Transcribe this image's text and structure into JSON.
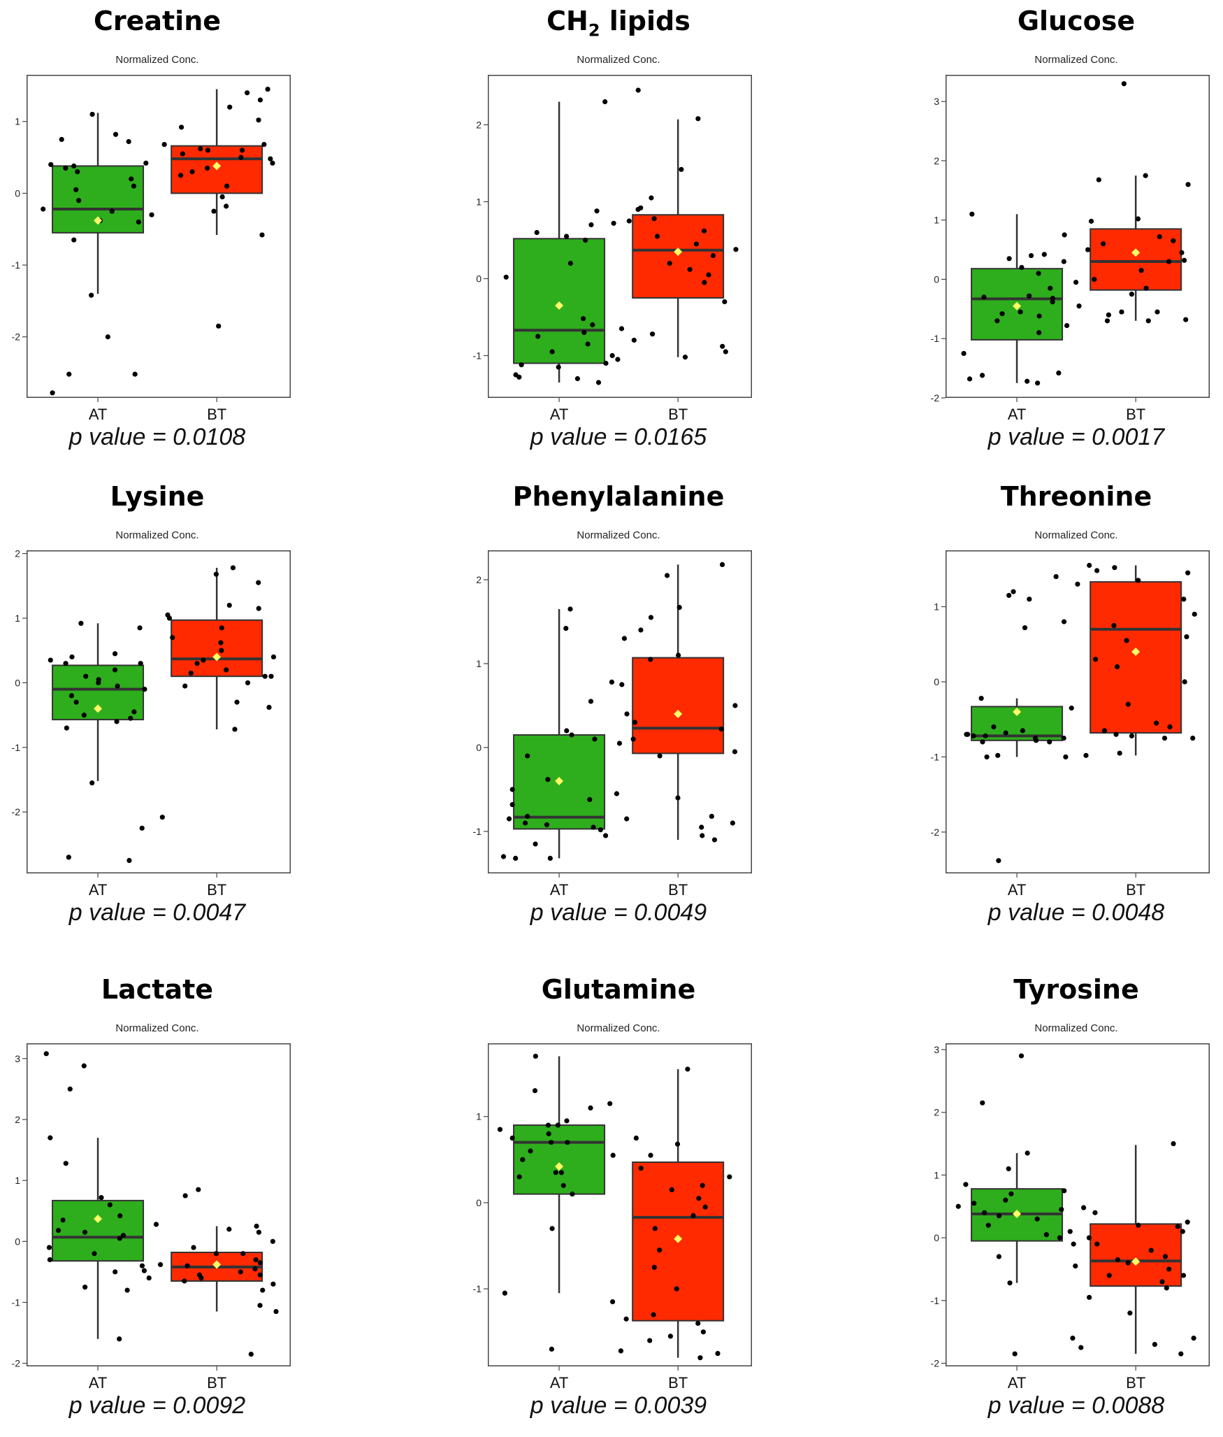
{
  "colors": {
    "AT": "#2eae1c",
    "BT": "#ff2a00",
    "mean_marker": "#ffff66",
    "points": "#000000"
  },
  "chart_data": [
    {
      "type": "box",
      "title": "Creatine",
      "ylabel": "Normalized Conc.",
      "categories": [
        "AT",
        "BT"
      ],
      "ylim": [
        -2.85,
        1.65
      ],
      "yticks": [
        1,
        0,
        -1,
        -2
      ],
      "boxes": [
        {
          "group": "AT",
          "min": -1.4,
          "q1": -0.55,
          "median": -0.22,
          "q3": 0.38,
          "max": 1.12,
          "mean": -0.38
        },
        {
          "group": "BT",
          "min": -0.58,
          "q1": 0.0,
          "median": 0.48,
          "q3": 0.66,
          "max": 1.45,
          "mean": 0.38
        }
      ],
      "points": {
        "AT": [
          0.82,
          0.42,
          0.38,
          0.4,
          0.35,
          0.72,
          0.75,
          0.3,
          0.1,
          -0.1,
          -0.25,
          -0.4,
          -0.3,
          -0.38,
          -0.65,
          1.1,
          -1.42,
          -2.0,
          -2.52,
          -2.52,
          -2.78,
          0.2,
          -0.22,
          0.05
        ],
        "BT": [
          1.45,
          1.4,
          1.3,
          1.2,
          1.02,
          0.92,
          0.68,
          0.62,
          0.6,
          0.55,
          0.5,
          0.48,
          0.42,
          0.3,
          0.25,
          0.1,
          -0.05,
          -0.18,
          -0.25,
          -0.58,
          -1.85,
          0.68,
          0.6,
          0.35
        ]
      },
      "p_value": "p value = 0.0108"
    },
    {
      "type": "box",
      "title": "CH2 lipids",
      "title_main": "CH",
      "title_sub": "2",
      "title_tail": " lipids",
      "ylabel": "Normalized Conc.",
      "categories": [
        "AT",
        "BT"
      ],
      "ylim": [
        -1.55,
        2.65
      ],
      "yticks": [
        2,
        1,
        0,
        -1
      ],
      "boxes": [
        {
          "group": "AT",
          "min": -1.35,
          "q1": -1.1,
          "median": -0.67,
          "q3": 0.52,
          "max": 2.3,
          "mean": -0.35
        },
        {
          "group": "BT",
          "min": -1.02,
          "q1": -0.25,
          "median": 0.37,
          "q3": 0.83,
          "max": 2.07,
          "mean": 0.35
        }
      ],
      "points": {
        "AT": [
          2.3,
          0.88,
          0.72,
          0.7,
          0.55,
          0.5,
          0.2,
          0.02,
          -0.52,
          -0.6,
          -0.7,
          -0.75,
          -0.85,
          -1.0,
          -1.05,
          -1.1,
          -1.12,
          -1.25,
          -1.3,
          -1.35,
          -1.28,
          -0.95,
          0.6,
          -1.15
        ],
        "BT": [
          2.45,
          2.08,
          1.42,
          1.05,
          0.92,
          0.9,
          0.78,
          0.75,
          0.55,
          0.45,
          0.3,
          0.2,
          0.05,
          -0.05,
          -0.3,
          -0.65,
          -0.72,
          -0.8,
          -0.88,
          -0.95,
          -1.02,
          0.62,
          0.38,
          0.12
        ]
      },
      "p_value": "p value = 0.0165"
    },
    {
      "type": "box",
      "title": "Glucose",
      "ylabel": "Normalized Conc.",
      "categories": [
        "AT",
        "BT"
      ],
      "ylim": [
        -2.0,
        3.45
      ],
      "yticks": [
        3,
        2,
        1,
        0,
        -1,
        -2
      ],
      "boxes": [
        {
          "group": "AT",
          "min": -1.75,
          "q1": -1.02,
          "median": -0.33,
          "q3": 0.18,
          "max": 1.1,
          "mean": -0.45
        },
        {
          "group": "BT",
          "min": -0.7,
          "q1": -0.18,
          "median": 0.3,
          "q3": 0.85,
          "max": 1.75,
          "mean": 0.45
        }
      ],
      "points": {
        "AT": [
          1.1,
          0.42,
          0.4,
          0.35,
          0.3,
          0.1,
          -0.05,
          -0.15,
          -0.28,
          -0.3,
          -0.32,
          -0.38,
          -0.55,
          -0.58,
          -0.62,
          -0.7,
          -0.78,
          -0.9,
          -1.25,
          -1.58,
          -1.62,
          -1.68,
          -1.72,
          -1.75,
          0.75,
          0.2
        ],
        "BT": [
          3.3,
          1.75,
          1.68,
          1.6,
          1.02,
          0.98,
          0.72,
          0.65,
          0.6,
          0.5,
          0.45,
          0.32,
          0.15,
          0.0,
          -0.15,
          -0.25,
          -0.45,
          -0.55,
          -0.6,
          -0.68,
          -0.7,
          -0.55,
          -0.7,
          0.3
        ]
      },
      "p_value": "p value = 0.0017"
    },
    {
      "type": "box",
      "title": "Lysine",
      "ylabel": "Normalized Conc.",
      "categories": [
        "AT",
        "BT"
      ],
      "ylim": [
        -2.95,
        2.05
      ],
      "yticks": [
        2,
        1,
        0,
        -1,
        -2
      ],
      "boxes": [
        {
          "group": "AT",
          "min": -1.52,
          "q1": -0.57,
          "median": -0.1,
          "q3": 0.27,
          "max": 0.92,
          "mean": -0.4
        },
        {
          "group": "BT",
          "min": -0.72,
          "q1": 0.1,
          "median": 0.37,
          "q3": 0.97,
          "max": 1.78,
          "mean": 0.4
        }
      ],
      "points": {
        "AT": [
          0.92,
          0.45,
          0.4,
          0.35,
          0.3,
          0.2,
          0.1,
          0.05,
          0.0,
          -0.05,
          -0.1,
          -0.2,
          -0.3,
          -0.45,
          -0.5,
          -0.55,
          -0.6,
          -0.7,
          -1.55,
          -2.25,
          -2.7,
          -2.75,
          0.3,
          0.85
        ],
        "BT": [
          1.78,
          1.68,
          1.55,
          1.2,
          1.15,
          1.05,
          1.0,
          0.85,
          0.7,
          0.5,
          0.4,
          0.35,
          0.3,
          0.2,
          0.15,
          0.1,
          0.0,
          -0.05,
          -0.3,
          -0.38,
          -0.72,
          -2.08,
          0.62,
          0.1
        ]
      },
      "p_value": "p value = 0.0047"
    },
    {
      "type": "box",
      "title": "Phenylalanine",
      "ylabel": "Normalized Conc.",
      "categories": [
        "AT",
        "BT"
      ],
      "ylim": [
        -1.5,
        2.35
      ],
      "yticks": [
        2,
        1,
        0,
        -1
      ],
      "boxes": [
        {
          "group": "AT",
          "min": -1.32,
          "q1": -0.97,
          "median": -0.83,
          "q3": 0.15,
          "max": 1.65,
          "mean": -0.4
        },
        {
          "group": "BT",
          "min": -1.1,
          "q1": -0.07,
          "median": 0.23,
          "q3": 1.07,
          "max": 2.18,
          "mean": 0.4
        }
      ],
      "points": {
        "AT": [
          1.65,
          1.42,
          0.78,
          0.55,
          0.2,
          0.15,
          0.1,
          -0.1,
          -0.38,
          -0.5,
          -0.55,
          -0.62,
          -0.68,
          -0.82,
          -0.85,
          -0.9,
          -0.92,
          -0.95,
          -0.98,
          -1.05,
          -1.15,
          -1.32,
          -1.32,
          -1.3
        ],
        "BT": [
          2.18,
          2.05,
          1.67,
          1.55,
          1.4,
          1.3,
          1.1,
          1.05,
          0.75,
          0.5,
          0.4,
          0.22,
          0.1,
          0.05,
          -0.05,
          -0.1,
          -0.6,
          -0.82,
          -0.85,
          -0.9,
          -0.95,
          -1.05,
          -1.1,
          0.3
        ]
      },
      "p_value": "p value = 0.0049"
    },
    {
      "type": "box",
      "title": "Threonine",
      "ylabel": "Normalized Conc.",
      "categories": [
        "AT",
        "BT"
      ],
      "ylim": [
        -2.55,
        1.75
      ],
      "yticks": [
        1,
        0,
        -1,
        -2
      ],
      "boxes": [
        {
          "group": "AT",
          "min": -1.0,
          "q1": -0.78,
          "median": -0.72,
          "q3": -0.33,
          "max": -0.22,
          "mean": -0.4
        },
        {
          "group": "BT",
          "min": -0.98,
          "q1": -0.68,
          "median": 0.7,
          "q3": 1.33,
          "max": 1.55,
          "mean": 0.4
        }
      ],
      "points": {
        "AT": [
          1.4,
          1.2,
          1.1,
          1.15,
          0.8,
          0.72,
          -0.22,
          -0.35,
          -0.6,
          -0.65,
          -0.7,
          -0.72,
          -0.75,
          -0.78,
          -0.8,
          -0.75,
          -0.72,
          -0.98,
          -1.0,
          -1.0,
          -2.38,
          -0.7,
          -0.68,
          -0.8
        ],
        "BT": [
          1.55,
          1.52,
          1.48,
          1.45,
          1.35,
          1.3,
          1.1,
          0.9,
          0.6,
          0.55,
          0.3,
          0.2,
          0.0,
          -0.3,
          -0.55,
          -0.6,
          -0.65,
          -0.7,
          -0.72,
          -0.75,
          -0.75,
          -0.95,
          -0.98,
          0.75
        ]
      },
      "p_value": "p value = 0.0048"
    },
    {
      "type": "box",
      "title": "Lactate",
      "ylabel": "Normalized Conc.",
      "categories": [
        "AT",
        "BT"
      ],
      "ylim": [
        -2.05,
        3.25
      ],
      "yticks": [
        3,
        2,
        1,
        0,
        -1,
        -2
      ],
      "boxes": [
        {
          "group": "AT",
          "min": -1.6,
          "q1": -0.32,
          "median": 0.07,
          "q3": 0.67,
          "max": 1.7,
          "mean": 0.37
        },
        {
          "group": "BT",
          "min": -1.15,
          "q1": -0.65,
          "median": -0.42,
          "q3": -0.18,
          "max": 0.25,
          "mean": -0.38
        }
      ],
      "points": {
        "AT": [
          3.08,
          2.88,
          2.5,
          1.7,
          1.28,
          0.72,
          0.6,
          0.42,
          0.35,
          0.28,
          0.18,
          0.1,
          0.05,
          -0.1,
          -0.2,
          -0.3,
          -0.4,
          -0.48,
          -0.5,
          -0.6,
          -0.75,
          -0.8,
          -1.6,
          0.15
        ],
        "BT": [
          0.85,
          0.75,
          0.25,
          0.2,
          0.15,
          0.0,
          -0.1,
          -0.2,
          -0.3,
          -0.35,
          -0.4,
          -0.45,
          -0.5,
          -0.55,
          -0.6,
          -0.65,
          -0.7,
          -0.8,
          -1.05,
          -1.15,
          -1.85,
          -0.38,
          -0.55,
          -0.2
        ]
      },
      "p_value": "p value = 0.0092"
    },
    {
      "type": "box",
      "title": "Glutamine",
      "ylabel": "Normalized Conc.",
      "categories": [
        "AT",
        "BT"
      ],
      "ylim": [
        -1.9,
        1.85
      ],
      "yticks": [
        1,
        0,
        -1
      ],
      "boxes": [
        {
          "group": "AT",
          "min": -1.05,
          "q1": 0.1,
          "median": 0.7,
          "q3": 0.9,
          "max": 1.7,
          "mean": 0.42
        },
        {
          "group": "BT",
          "min": -1.8,
          "q1": -1.37,
          "median": -0.17,
          "q3": 0.47,
          "max": 1.55,
          "mean": -0.42
        }
      ],
      "points": {
        "AT": [
          1.7,
          1.3,
          1.15,
          1.1,
          0.95,
          0.9,
          0.85,
          0.8,
          0.75,
          0.7,
          0.6,
          0.5,
          0.35,
          0.35,
          0.3,
          0.2,
          0.1,
          -0.3,
          -1.05,
          -1.15,
          -1.7,
          0.9,
          0.55,
          0.7
        ],
        "BT": [
          1.55,
          0.75,
          0.68,
          0.55,
          0.4,
          0.3,
          0.2,
          0.15,
          -0.05,
          -0.3,
          -0.55,
          -0.75,
          -1.0,
          -1.3,
          -1.35,
          -1.4,
          -1.5,
          -1.55,
          -1.6,
          -1.72,
          -1.75,
          -1.8,
          -0.15,
          0.05
        ]
      },
      "p_value": "p value = 0.0039"
    },
    {
      "type": "box",
      "title": "Tyrosine",
      "ylabel": "Normalized Conc.",
      "categories": [
        "AT",
        "BT"
      ],
      "ylim": [
        -2.05,
        3.1
      ],
      "yticks": [
        3,
        2,
        1,
        0,
        -1,
        -2
      ],
      "boxes": [
        {
          "group": "AT",
          "min": -0.72,
          "q1": -0.05,
          "median": 0.38,
          "q3": 0.78,
          "max": 1.35,
          "mean": 0.38
        },
        {
          "group": "BT",
          "min": -1.85,
          "q1": -0.77,
          "median": -0.37,
          "q3": 0.22,
          "max": 1.48,
          "mean": -0.38
        }
      ],
      "points": {
        "AT": [
          2.9,
          2.15,
          1.35,
          1.1,
          0.75,
          0.7,
          0.6,
          0.55,
          0.5,
          0.45,
          0.35,
          0.3,
          0.2,
          0.1,
          0.0,
          -0.1,
          -0.3,
          -0.45,
          -0.72,
          -1.6,
          -1.85,
          0.85,
          0.4,
          0.05
        ],
        "BT": [
          1.5,
          0.48,
          0.4,
          0.25,
          0.2,
          0.1,
          0.0,
          -0.1,
          -0.2,
          -0.3,
          -0.4,
          -0.5,
          -0.6,
          -0.7,
          -0.8,
          -0.95,
          -1.2,
          -1.6,
          -1.7,
          -1.75,
          -1.85,
          -0.35,
          -0.6,
          0.18
        ]
      },
      "p_value": "p value = 0.0088"
    }
  ]
}
